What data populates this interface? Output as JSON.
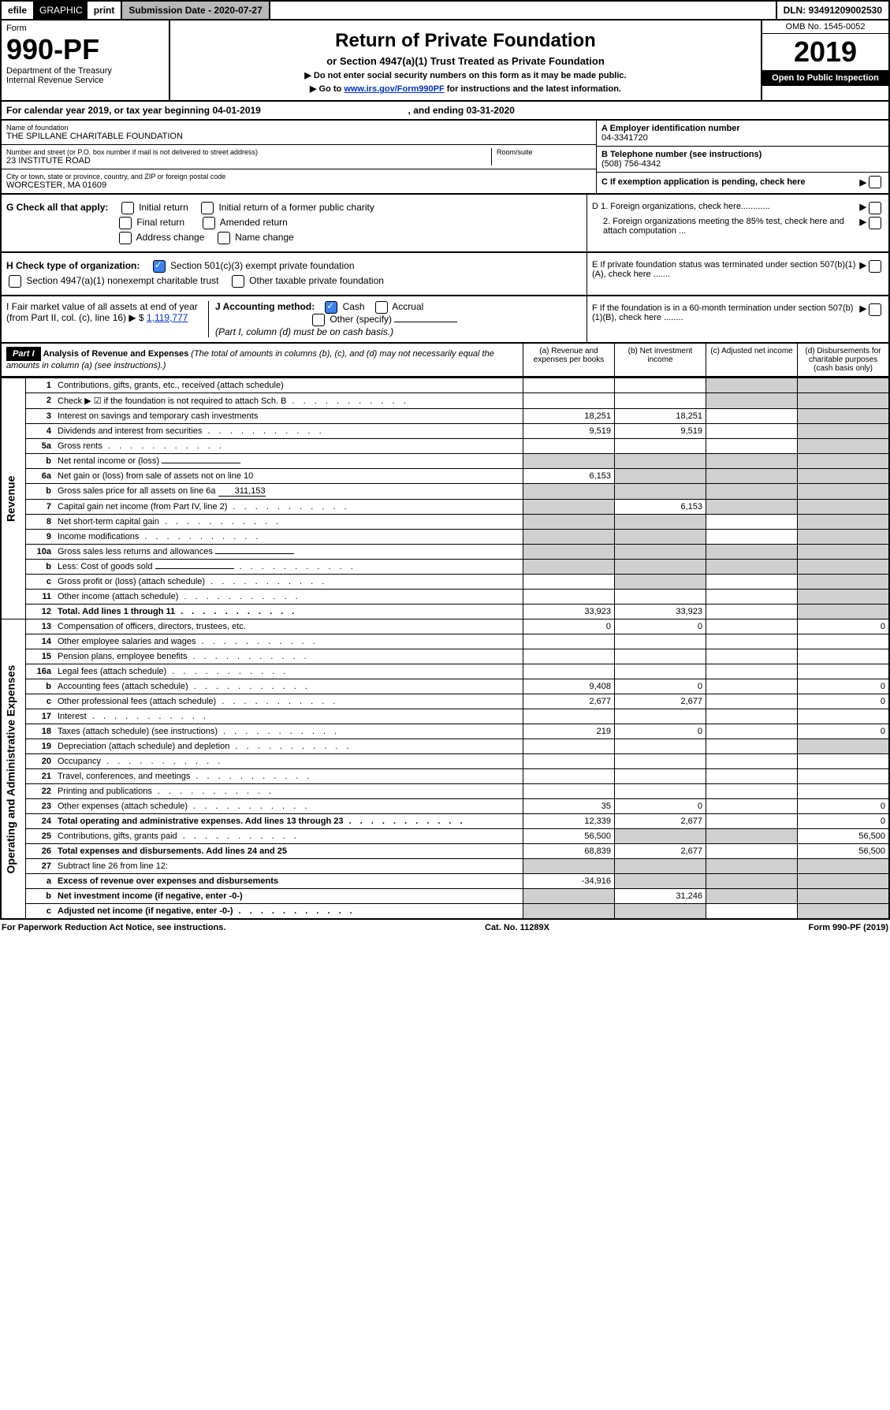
{
  "topbar": {
    "efile": "efile",
    "graphic": "GRAPHIC",
    "print": "print",
    "submission": "Submission Date - 2020-07-27",
    "dln": "DLN: 93491209002530"
  },
  "header": {
    "form_label": "Form",
    "form_no": "990-PF",
    "dept": "Department of the Treasury",
    "irs": "Internal Revenue Service",
    "title": "Return of Private Foundation",
    "subtitle": "or Section 4947(a)(1) Trust Treated as Private Foundation",
    "instr1": "▶ Do not enter social security numbers on this form as it may be made public.",
    "instr2_pre": "▶ Go to ",
    "instr2_link": "www.irs.gov/Form990PF",
    "instr2_post": " for instructions and the latest information.",
    "omb": "OMB No. 1545-0052",
    "year": "2019",
    "open": "Open to Public Inspection"
  },
  "calendar": {
    "text_pre": "For calendar year 2019, or tax year beginning ",
    "begin": "04-01-2019",
    "text_mid": " , and ending ",
    "end": "03-31-2020"
  },
  "org": {
    "name_label": "Name of foundation",
    "name": "THE SPILLANE CHARITABLE FOUNDATION",
    "addr_label": "Number and street (or P.O. box number if mail is not delivered to street address)",
    "addr": "23 INSTITUTE ROAD",
    "room_label": "Room/suite",
    "city_label": "City or town, state or province, country, and ZIP or foreign postal code",
    "city": "WORCESTER, MA  01609",
    "ein_label": "A Employer identification number",
    "ein": "04-3341720",
    "tel_label": "B Telephone number (see instructions)",
    "tel": "(508) 756-4342",
    "c_label": "C If exemption application is pending, check here"
  },
  "g_block": {
    "label": "G Check all that apply:",
    "opts": [
      "Initial return",
      "Initial return of a former public charity",
      "Final return",
      "Amended return",
      "Address change",
      "Name change"
    ]
  },
  "h_block": {
    "label": "H Check type of organization:",
    "opt1": "Section 501(c)(3) exempt private foundation",
    "opt2": "Section 4947(a)(1) nonexempt charitable trust",
    "opt3": "Other taxable private foundation"
  },
  "i_block": {
    "label": "I Fair market value of all assets at end of year (from Part II, col. (c), line 16) ▶ $ ",
    "value": "1,119,777"
  },
  "j_block": {
    "label": "J Accounting method:",
    "cash": "Cash",
    "accrual": "Accrual",
    "other": "Other (specify)",
    "note": "(Part I, column (d) must be on cash basis.)"
  },
  "d_block": {
    "d1": "D 1. Foreign organizations, check here............",
    "d2": "2. Foreign organizations meeting the 85% test, check here and attach computation ...",
    "e": "E  If private foundation status was terminated under section 507(b)(1)(A), check here .......",
    "f": "F  If the foundation is in a 60-month termination under section 507(b)(1)(B), check here ........"
  },
  "part1": {
    "label": "Part I",
    "title": "Analysis of Revenue and Expenses",
    "note": "(The total of amounts in columns (b), (c), and (d) may not necessarily equal the amounts in column (a) (see instructions).)",
    "cols": {
      "a": "(a) Revenue and expenses per books",
      "b": "(b) Net investment income",
      "c": "(c) Adjusted net income",
      "d": "(d) Disbursements for charitable purposes (cash basis only)"
    }
  },
  "rotated": {
    "revenue": "Revenue",
    "expenses": "Operating and Administrative Expenses"
  },
  "rows": [
    {
      "no": "1",
      "desc": "Contributions, gifts, grants, etc., received (attach schedule)",
      "a": "",
      "b": "",
      "c_shaded": true,
      "d_shaded": true
    },
    {
      "no": "2",
      "desc": "Check ▶ ☑ if the foundation is not required to attach Sch. B",
      "a": "",
      "b": "",
      "c_shaded": true,
      "d_shaded": true,
      "dots": true
    },
    {
      "no": "3",
      "desc": "Interest on savings and temporary cash investments",
      "a": "18,251",
      "b": "18,251",
      "c": "",
      "d_shaded": true
    },
    {
      "no": "4",
      "desc": "Dividends and interest from securities",
      "a": "9,519",
      "b": "9,519",
      "c": "",
      "d_shaded": true,
      "dots": true
    },
    {
      "no": "5a",
      "desc": "Gross rents",
      "a": "",
      "b": "",
      "c": "",
      "d_shaded": true,
      "dots": true
    },
    {
      "no": "b",
      "desc": "Net rental income or (loss)",
      "a_shaded": true,
      "b_shaded": true,
      "c_shaded": true,
      "d_shaded": true,
      "blank": true
    },
    {
      "no": "6a",
      "desc": "Net gain or (loss) from sale of assets not on line 10",
      "a": "6,153",
      "b_shaded": true,
      "c_shaded": true,
      "d_shaded": true
    },
    {
      "no": "b",
      "desc": "Gross sales price for all assets on line 6a",
      "inline": "311,153",
      "a_shaded": true,
      "b_shaded": true,
      "c_shaded": true,
      "d_shaded": true
    },
    {
      "no": "7",
      "desc": "Capital gain net income (from Part IV, line 2)",
      "a_shaded": true,
      "b": "6,153",
      "c_shaded": true,
      "d_shaded": true,
      "dots": true
    },
    {
      "no": "8",
      "desc": "Net short-term capital gain",
      "a_shaded": true,
      "b_shaded": true,
      "c": "",
      "d_shaded": true,
      "dots": true
    },
    {
      "no": "9",
      "desc": "Income modifications",
      "a_shaded": true,
      "b_shaded": true,
      "c": "",
      "d_shaded": true,
      "dots": true
    },
    {
      "no": "10a",
      "desc": "Gross sales less returns and allowances",
      "a_shaded": true,
      "b_shaded": true,
      "c_shaded": true,
      "d_shaded": true,
      "blank": true
    },
    {
      "no": "b",
      "desc": "Less: Cost of goods sold",
      "a_shaded": true,
      "b_shaded": true,
      "c_shaded": true,
      "d_shaded": true,
      "dots": true,
      "blank": true
    },
    {
      "no": "c",
      "desc": "Gross profit or (loss) (attach schedule)",
      "a": "",
      "b_shaded": true,
      "c": "",
      "d_shaded": true,
      "dots": true
    },
    {
      "no": "11",
      "desc": "Other income (attach schedule)",
      "a": "",
      "b": "",
      "c": "",
      "d_shaded": true,
      "dots": true
    },
    {
      "no": "12",
      "desc": "Total. Add lines 1 through 11",
      "a": "33,923",
      "b": "33,923",
      "c": "",
      "d_shaded": true,
      "dots": true,
      "bold": true
    },
    {
      "no": "13",
      "desc": "Compensation of officers, directors, trustees, etc.",
      "a": "0",
      "b": "0",
      "c": "",
      "d": "0"
    },
    {
      "no": "14",
      "desc": "Other employee salaries and wages",
      "a": "",
      "b": "",
      "c": "",
      "d": "",
      "dots": true
    },
    {
      "no": "15",
      "desc": "Pension plans, employee benefits",
      "a": "",
      "b": "",
      "c": "",
      "d": "",
      "dots": true
    },
    {
      "no": "16a",
      "desc": "Legal fees (attach schedule)",
      "a": "",
      "b": "",
      "c": "",
      "d": "",
      "dots": true
    },
    {
      "no": "b",
      "desc": "Accounting fees (attach schedule)",
      "a": "9,408",
      "b": "0",
      "c": "",
      "d": "0",
      "dots": true
    },
    {
      "no": "c",
      "desc": "Other professional fees (attach schedule)",
      "a": "2,677",
      "b": "2,677",
      "c": "",
      "d": "0",
      "dots": true
    },
    {
      "no": "17",
      "desc": "Interest",
      "a": "",
      "b": "",
      "c": "",
      "d": "",
      "dots": true
    },
    {
      "no": "18",
      "desc": "Taxes (attach schedule) (see instructions)",
      "a": "219",
      "b": "0",
      "c": "",
      "d": "0",
      "dots": true
    },
    {
      "no": "19",
      "desc": "Depreciation (attach schedule) and depletion",
      "a": "",
      "b": "",
      "c": "",
      "d_shaded": true,
      "dots": true
    },
    {
      "no": "20",
      "desc": "Occupancy",
      "a": "",
      "b": "",
      "c": "",
      "d": "",
      "dots": true
    },
    {
      "no": "21",
      "desc": "Travel, conferences, and meetings",
      "a": "",
      "b": "",
      "c": "",
      "d": "",
      "dots": true
    },
    {
      "no": "22",
      "desc": "Printing and publications",
      "a": "",
      "b": "",
      "c": "",
      "d": "",
      "dots": true
    },
    {
      "no": "23",
      "desc": "Other expenses (attach schedule)",
      "a": "35",
      "b": "0",
      "c": "",
      "d": "0",
      "dots": true
    },
    {
      "no": "24",
      "desc": "Total operating and administrative expenses. Add lines 13 through 23",
      "a": "12,339",
      "b": "2,677",
      "c": "",
      "d": "0",
      "dots": true,
      "bold": true
    },
    {
      "no": "25",
      "desc": "Contributions, gifts, grants paid",
      "a": "56,500",
      "b_shaded": true,
      "c_shaded": true,
      "d": "56,500",
      "dots": true
    },
    {
      "no": "26",
      "desc": "Total expenses and disbursements. Add lines 24 and 25",
      "a": "68,839",
      "b": "2,677",
      "c": "",
      "d": "56,500",
      "bold": true
    },
    {
      "no": "27",
      "desc": "Subtract line 26 from line 12:",
      "a_shaded": true,
      "b_shaded": true,
      "c_shaded": true,
      "d_shaded": true
    },
    {
      "no": "a",
      "desc": "Excess of revenue over expenses and disbursements",
      "a": "-34,916",
      "b_shaded": true,
      "c_shaded": true,
      "d_shaded": true,
      "bold": true
    },
    {
      "no": "b",
      "desc": "Net investment income (if negative, enter -0-)",
      "a_shaded": true,
      "b": "31,246",
      "c_shaded": true,
      "d_shaded": true,
      "bold": true
    },
    {
      "no": "c",
      "desc": "Adjusted net income (if negative, enter -0-)",
      "a_shaded": true,
      "b_shaded": true,
      "c": "",
      "d_shaded": true,
      "bold": true,
      "dots": true
    }
  ],
  "footer": {
    "left": "For Paperwork Reduction Act Notice, see instructions.",
    "center": "Cat. No. 11289X",
    "right": "Form 990-PF (2019)"
  }
}
